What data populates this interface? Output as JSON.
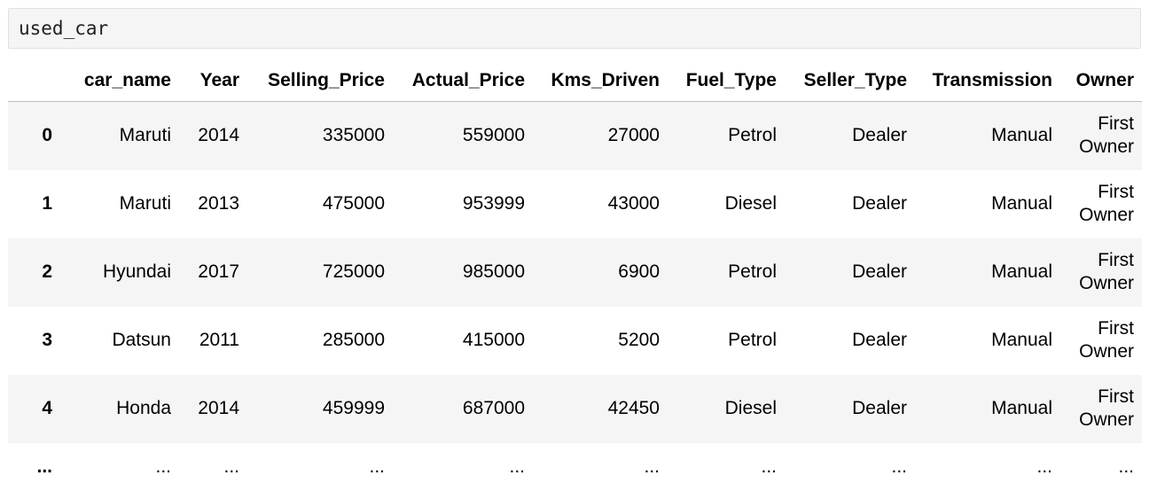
{
  "code_cell": {
    "text": "used_car"
  },
  "table": {
    "columns": [
      "car_name",
      "Year",
      "Selling_Price",
      "Actual_Price",
      "Kms_Driven",
      "Fuel_Type",
      "Seller_Type",
      "Transmission",
      "Owner"
    ],
    "rows": [
      {
        "index": "0",
        "car_name": "Maruti",
        "Year": "2014",
        "Selling_Price": "335000",
        "Actual_Price": "559000",
        "Kms_Driven": "27000",
        "Fuel_Type": "Petrol",
        "Seller_Type": "Dealer",
        "Transmission": "Manual",
        "Owner_line1": "First",
        "Owner_line2": "Owner"
      },
      {
        "index": "1",
        "car_name": "Maruti",
        "Year": "2013",
        "Selling_Price": "475000",
        "Actual_Price": "953999",
        "Kms_Driven": "43000",
        "Fuel_Type": "Diesel",
        "Seller_Type": "Dealer",
        "Transmission": "Manual",
        "Owner_line1": "First",
        "Owner_line2": "Owner"
      },
      {
        "index": "2",
        "car_name": "Hyundai",
        "Year": "2017",
        "Selling_Price": "725000",
        "Actual_Price": "985000",
        "Kms_Driven": "6900",
        "Fuel_Type": "Petrol",
        "Seller_Type": "Dealer",
        "Transmission": "Manual",
        "Owner_line1": "First",
        "Owner_line2": "Owner"
      },
      {
        "index": "3",
        "car_name": "Datsun",
        "Year": "2011",
        "Selling_Price": "285000",
        "Actual_Price": "415000",
        "Kms_Driven": "5200",
        "Fuel_Type": "Petrol",
        "Seller_Type": "Dealer",
        "Transmission": "Manual",
        "Owner_line1": "First",
        "Owner_line2": "Owner"
      },
      {
        "index": "4",
        "car_name": "Honda",
        "Year": "2014",
        "Selling_Price": "459999",
        "Actual_Price": "687000",
        "Kms_Driven": "42450",
        "Fuel_Type": "Diesel",
        "Seller_Type": "Dealer",
        "Transmission": "Manual",
        "Owner_line1": "First",
        "Owner_line2": "Owner"
      }
    ],
    "ellipsis": "..."
  },
  "colors": {
    "stripe": "#f5f5f5",
    "code_background": "#f5f5f5",
    "header_border": "#bdbdbd"
  }
}
